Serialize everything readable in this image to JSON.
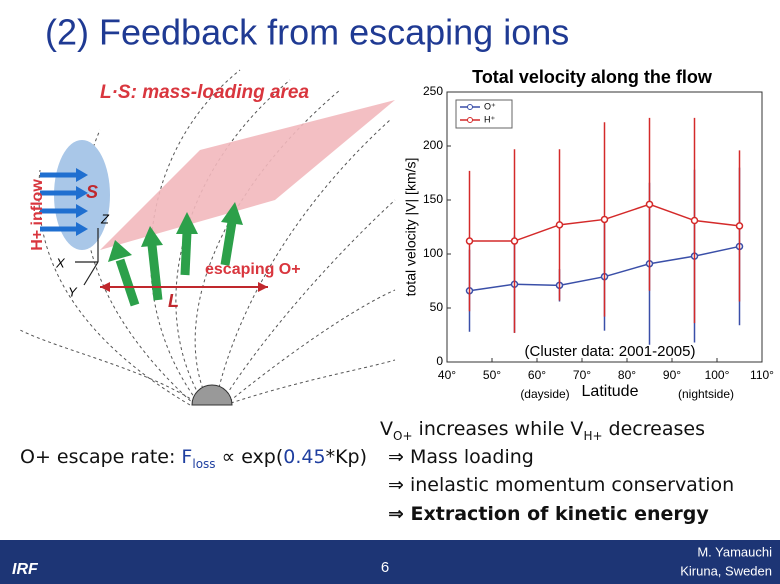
{
  "slide": {
    "title": "(2) Feedback from escaping ions",
    "diagram": {
      "area_label": "L·S: mass-loading area",
      "s_label": "S",
      "z_label": "Z",
      "x_label": "X",
      "y_label": "Y",
      "l_label": "L",
      "escaping": "escaping O+",
      "inflow": "H+ inflow"
    },
    "notes": {
      "v_line": [
        "V",
        "O+",
        " increases while V",
        "H+",
        " decreases"
      ],
      "rate": [
        "O+ escape rate: ",
        "F",
        "loss",
        " ∝ exp(",
        "0.45",
        "*Kp)"
      ],
      "bullets": [
        {
          "mark": "⇒",
          "text": "Mass loading"
        },
        {
          "mark": "⇒",
          "text": "inelastic momentum conservation"
        },
        {
          "mark": "⇒",
          "text": "Extraction of kinetic energy"
        }
      ]
    },
    "footer": {
      "logo": "IRF",
      "page": "6",
      "author": "M. Yamauchi",
      "place": "Kiruna, Sweden"
    }
  },
  "chart_data": {
    "type": "line",
    "title": "Total velocity along the flow",
    "y_label": "total velocity |V|  [km/s]",
    "x_label": "Latitude",
    "annotations": [
      "(Cluster data: 2001-2005)",
      "(dayside)",
      "(nightside)"
    ],
    "x": [
      45,
      55,
      65,
      75,
      85,
      95,
      105
    ],
    "series": [
      {
        "name": "O⁺",
        "color": "#3a4fa8",
        "values": [
          66,
          72,
          71,
          79,
          91,
          98,
          107
        ],
        "errors": [
          38,
          45,
          15,
          50,
          75,
          80,
          73
        ]
      },
      {
        "name": "H⁺",
        "color": "#d42a2a",
        "values": [
          112,
          112,
          127,
          132,
          146,
          131,
          126
        ],
        "errors": [
          65,
          85,
          70,
          90,
          80,
          95,
          70
        ]
      }
    ],
    "xlim": [
      40,
      110
    ],
    "ylim": [
      0,
      250
    ],
    "xticks": [
      {
        "value": 40,
        "label": "40°"
      },
      {
        "value": 50,
        "label": "50°"
      },
      {
        "value": 60,
        "label": "60°"
      },
      {
        "value": 70,
        "label": "70°"
      },
      {
        "value": 80,
        "label": "80°"
      },
      {
        "value": 90,
        "label": "90°"
      },
      {
        "value": 100,
        "label": "100°"
      },
      {
        "value": 110,
        "label": "110°"
      }
    ],
    "yticks": [
      0,
      50,
      100,
      150,
      200,
      250
    ]
  }
}
